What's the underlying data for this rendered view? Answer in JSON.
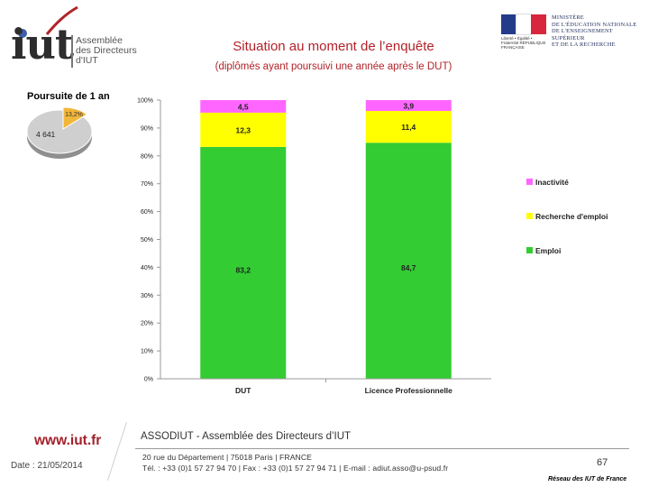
{
  "header": {
    "logo_text": "iut",
    "org_lines": [
      "Assemblée",
      "des Directeurs",
      "d'IUT"
    ],
    "ministry_lines": [
      "MINISTÈRE",
      "DE L'ÉDUCATION NATIONALE",
      "DE L'ENSEIGNEMENT SUPÉRIEUR",
      "ET DE LA RECHERCHE"
    ],
    "marianne_text": "Liberté • Égalité • Fraternité RÉPUBLIQUE FRANÇAISE",
    "title": "Situation au moment de l’enquête",
    "subtitle": "(diplômés ayant poursuivi une année après le DUT)"
  },
  "pie": {
    "title": "Poursuite de 1 an",
    "highlight_label": "13,2%",
    "count_label": "4 641",
    "highlight_fraction": 0.132,
    "colors": {
      "highlight": "#f2b63a",
      "rest": "#c8c8c8"
    }
  },
  "chart_data": {
    "type": "bar",
    "stacked": true,
    "normalized_100": true,
    "categories": [
      "DUT",
      "Licence Professionnelle"
    ],
    "series": [
      {
        "name": "Emploi",
        "values": [
          83.2,
          84.7
        ],
        "labels": [
          "83,2",
          "84,7"
        ],
        "color": "#33cc33"
      },
      {
        "name": "Recherche d'emploi",
        "values": [
          12.3,
          11.4
        ],
        "labels": [
          "12,3",
          "11,4"
        ],
        "color": "#ffff00"
      },
      {
        "name": "Inactivité",
        "values": [
          4.5,
          3.9
        ],
        "labels": [
          "4,5",
          "3,9"
        ],
        "color": "#ff66ff"
      }
    ],
    "legend_order": [
      "Inactivité",
      "Recherche d'emploi",
      "Emploi"
    ],
    "legend_position": "right",
    "ylim": [
      0,
      100
    ],
    "yticks": [
      "0%",
      "10%",
      "20%",
      "30%",
      "40%",
      "50%",
      "60%",
      "70%",
      "80%",
      "90%",
      "100%"
    ],
    "title": "",
    "xlabel": "",
    "ylabel": ""
  },
  "footer": {
    "website": "www.iut.fr",
    "date": "Date : 21/05/2014",
    "association": "ASSODIUT - Assemblée des Directeurs d’IUT",
    "address_line1": "20 rue du Département | 75018 Paris | FRANCE",
    "address_line2": "Tél. : +33 (0)1 57 27 94 70 | Fax : +33 (0)1 57 27 94 71 | E-mail : adiut.asso@u-psud.fr",
    "page_number": "67",
    "network": "Réseau des IUT de France"
  }
}
